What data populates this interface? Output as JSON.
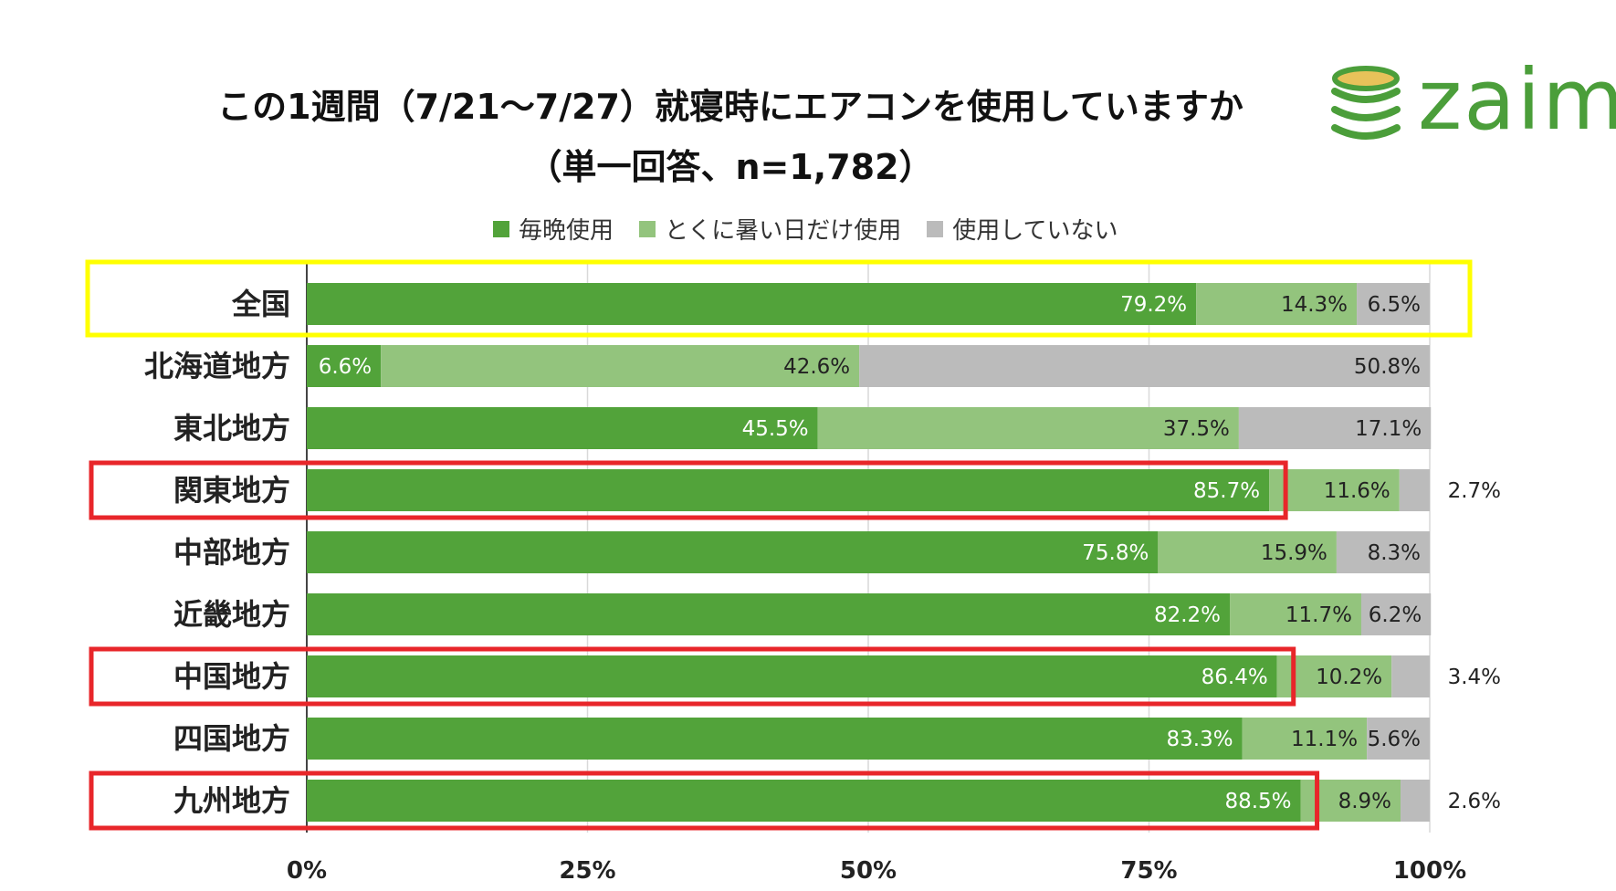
{
  "header": {
    "title_line1": "この1週間（7/21〜7/27）就寝時にエアコンを使用していますか",
    "title_line2": "（単一回答、n=1,782）"
  },
  "logo": {
    "text": "zaim",
    "icon": "coin-stack-icon",
    "color": "#4b9e3a"
  },
  "chart_data": {
    "type": "bar",
    "orientation": "horizontal",
    "stacked": true,
    "percent_stacked": true,
    "title": "この1週間（7/21〜7/27）就寝時にエアコンを使用していますか（単一回答、n=1,782）",
    "xlabel": "",
    "ylabel": "",
    "xlim": [
      0,
      100
    ],
    "xticks": [
      "0%",
      "25%",
      "50%",
      "75%",
      "100%"
    ],
    "grid": true,
    "legend_position": "top",
    "categories": [
      "全国",
      "北海道地方",
      "東北地方",
      "関東地方",
      "中部地方",
      "近畿地方",
      "中国地方",
      "四国地方",
      "九州地方"
    ],
    "series": [
      {
        "name": "毎晩使用",
        "color": "#52a33a",
        "values": [
          79.2,
          6.6,
          45.5,
          85.7,
          75.8,
          82.2,
          86.4,
          83.3,
          88.5
        ]
      },
      {
        "name": "とくに暑い日だけ使用",
        "color": "#93c47d",
        "values": [
          14.3,
          42.6,
          37.5,
          11.6,
          15.9,
          11.7,
          10.2,
          11.1,
          8.9
        ]
      },
      {
        "name": "使用していない",
        "color": "#bbbbbb",
        "values": [
          6.5,
          50.8,
          17.1,
          2.7,
          8.3,
          6.2,
          3.4,
          5.6,
          2.6
        ]
      }
    ],
    "labels": [
      [
        "79.2%",
        "14.3%",
        "6.5%"
      ],
      [
        "6.6%",
        "42.6%",
        "50.8%"
      ],
      [
        "45.5%",
        "37.5%",
        "17.1%"
      ],
      [
        "85.7%",
        "11.6%",
        "2.7%"
      ],
      [
        "75.8%",
        "15.9%",
        "8.3%"
      ],
      [
        "82.2%",
        "11.7%",
        "6.2%"
      ],
      [
        "86.4%",
        "10.2%",
        "3.4%"
      ],
      [
        "83.3%",
        "11.1%",
        "5.6%"
      ],
      [
        "88.5%",
        "8.9%",
        "2.6%"
      ]
    ],
    "outside_labels": [
      false,
      false,
      false,
      true,
      false,
      false,
      true,
      false,
      true
    ],
    "highlights": [
      {
        "category": "全国",
        "color": "#ffff00",
        "scope": "row"
      },
      {
        "category": "関東地方",
        "color": "#e8262a",
        "scope": "first-series"
      },
      {
        "category": "中国地方",
        "color": "#e8262a",
        "scope": "first-series"
      },
      {
        "category": "九州地方",
        "color": "#e8262a",
        "scope": "first-series"
      }
    ]
  }
}
